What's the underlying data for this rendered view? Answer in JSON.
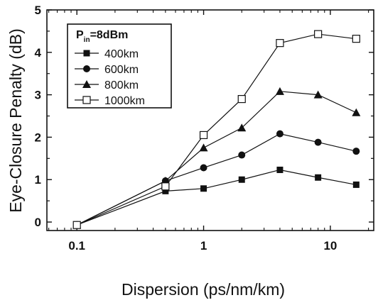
{
  "chart_data": {
    "type": "line",
    "xscale": "log",
    "xlabel": "Dispersion (ps/nm/km)",
    "ylabel": "Eye-Closure Penalty (dB)",
    "xlim": [
      0.058,
      22
    ],
    "ylim": [
      -0.2,
      5
    ],
    "xticks": [
      0.1,
      1,
      10
    ],
    "xtick_labels": [
      "0.1",
      "1",
      "10"
    ],
    "yticks": [
      0,
      1,
      2,
      3,
      4,
      5
    ],
    "ytick_labels": [
      "0",
      "1",
      "2",
      "3",
      "4",
      "5"
    ],
    "grid": false,
    "legend_position": "top-left",
    "legend_title_main": "P",
    "legend_title_sub": "in",
    "legend_title_rest": "=8dBm",
    "x": [
      0.1,
      0.5,
      1,
      2,
      4,
      8,
      16
    ],
    "series": [
      {
        "name": "400km",
        "marker": "filled-square",
        "values": [
          -0.07,
          0.73,
          0.79,
          1.0,
          1.23,
          1.05,
          0.88
        ]
      },
      {
        "name": "600km",
        "marker": "filled-circle",
        "values": [
          -0.07,
          0.97,
          1.28,
          1.58,
          2.08,
          1.88,
          1.67
        ]
      },
      {
        "name": "800km",
        "marker": "filled-triangle",
        "values": [
          -0.07,
          0.97,
          1.75,
          2.22,
          3.08,
          3.0,
          2.58
        ]
      },
      {
        "name": "1000km",
        "marker": "open-square",
        "values": [
          -0.07,
          0.84,
          2.05,
          2.9,
          4.22,
          4.43,
          4.32
        ]
      }
    ]
  }
}
